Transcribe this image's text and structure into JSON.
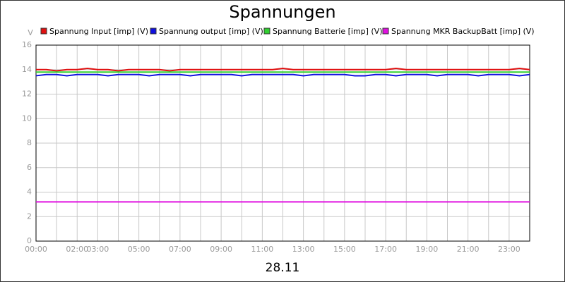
{
  "chart_data": {
    "type": "line",
    "title": "Spannungen",
    "y_label": "V",
    "x_label": "28.11",
    "x": [
      0,
      0.5,
      1,
      1.5,
      2,
      2.5,
      3,
      3.5,
      4,
      4.5,
      5,
      5.5,
      6,
      6.5,
      7,
      7.5,
      8,
      8.5,
      9,
      9.5,
      10,
      10.5,
      11,
      11.5,
      12,
      12.5,
      13,
      13.5,
      14,
      14.5,
      15,
      15.5,
      16,
      16.5,
      17,
      17.5,
      18,
      18.5,
      19,
      19.5,
      20,
      20.5,
      21,
      21.5,
      22,
      22.5,
      23,
      23.5,
      24
    ],
    "series": [
      {
        "name": "Spannung Input [imp] (V)",
        "color": "#e01010",
        "values": [
          14.0,
          14.0,
          13.9,
          14.0,
          14.0,
          14.1,
          14.0,
          14.0,
          13.9,
          14.0,
          14.0,
          14.0,
          14.0,
          13.9,
          14.0,
          14.0,
          14.0,
          14.0,
          14.0,
          14.0,
          14.0,
          14.0,
          14.0,
          14.0,
          14.1,
          14.0,
          14.0,
          14.0,
          14.0,
          14.0,
          14.0,
          14.0,
          14.0,
          14.0,
          14.0,
          14.1,
          14.0,
          14.0,
          14.0,
          14.0,
          14.0,
          14.0,
          14.0,
          14.0,
          14.0,
          14.0,
          14.0,
          14.1,
          14.0
        ]
      },
      {
        "name": "Spannung output [imp] (V)",
        "color": "#1010e0",
        "values": [
          13.5,
          13.6,
          13.6,
          13.5,
          13.6,
          13.6,
          13.6,
          13.5,
          13.6,
          13.6,
          13.6,
          13.5,
          13.6,
          13.6,
          13.6,
          13.5,
          13.6,
          13.6,
          13.6,
          13.6,
          13.5,
          13.6,
          13.6,
          13.6,
          13.6,
          13.6,
          13.5,
          13.6,
          13.6,
          13.6,
          13.6,
          13.5,
          13.5,
          13.6,
          13.6,
          13.5,
          13.6,
          13.6,
          13.6,
          13.5,
          13.6,
          13.6,
          13.6,
          13.5,
          13.6,
          13.6,
          13.6,
          13.5,
          13.6
        ]
      },
      {
        "name": "Spannung Batterie [imp] (V)",
        "color": "#30d030",
        "values": [
          13.8,
          13.8,
          13.8,
          13.8,
          13.8,
          13.8,
          13.8,
          13.8,
          13.8,
          13.8,
          13.8,
          13.8,
          13.8,
          13.8,
          13.8,
          13.8,
          13.8,
          13.8,
          13.8,
          13.8,
          13.8,
          13.8,
          13.8,
          13.8,
          13.8,
          13.8,
          13.8,
          13.8,
          13.8,
          13.8,
          13.8,
          13.8,
          13.8,
          13.8,
          13.8,
          13.8,
          13.8,
          13.8,
          13.8,
          13.8,
          13.8,
          13.8,
          13.8,
          13.8,
          13.8,
          13.8,
          13.8,
          13.8,
          13.8
        ]
      },
      {
        "name": "Spannung MKR BackupBatt [imp] (V)",
        "color": "#e010e0",
        "values": [
          3.2,
          3.2,
          3.2,
          3.2,
          3.2,
          3.2,
          3.2,
          3.2,
          3.2,
          3.2,
          3.2,
          3.2,
          3.2,
          3.2,
          3.2,
          3.2,
          3.2,
          3.2,
          3.2,
          3.2,
          3.2,
          3.2,
          3.2,
          3.2,
          3.2,
          3.2,
          3.2,
          3.2,
          3.2,
          3.2,
          3.2,
          3.2,
          3.2,
          3.2,
          3.2,
          3.2,
          3.2,
          3.2,
          3.2,
          3.2,
          3.2,
          3.2,
          3.2,
          3.2,
          3.2,
          3.2,
          3.2,
          3.2,
          3.2
        ]
      }
    ],
    "xlim": [
      0,
      24
    ],
    "xticks": [
      {
        "value": 0,
        "label": "00:00"
      },
      {
        "value": 2,
        "label": "02:00"
      },
      {
        "value": 3,
        "label": "03:00"
      },
      {
        "value": 5,
        "label": "05:00"
      },
      {
        "value": 7,
        "label": "07:00"
      },
      {
        "value": 9,
        "label": "09:00"
      },
      {
        "value": 11,
        "label": "11:00"
      },
      {
        "value": 13,
        "label": "13:00"
      },
      {
        "value": 15,
        "label": "15:00"
      },
      {
        "value": 17,
        "label": "17:00"
      },
      {
        "value": 19,
        "label": "19:00"
      },
      {
        "value": 21,
        "label": "21:00"
      },
      {
        "value": 23,
        "label": "23:00"
      }
    ],
    "x_minor_ticks": [
      1,
      4,
      6,
      8,
      10,
      12,
      14,
      16,
      18,
      20,
      22,
      24
    ],
    "ylim": [
      0,
      16
    ],
    "yticks": [
      0,
      2,
      4,
      6,
      8,
      10,
      12,
      14,
      16
    ],
    "grid": true
  }
}
